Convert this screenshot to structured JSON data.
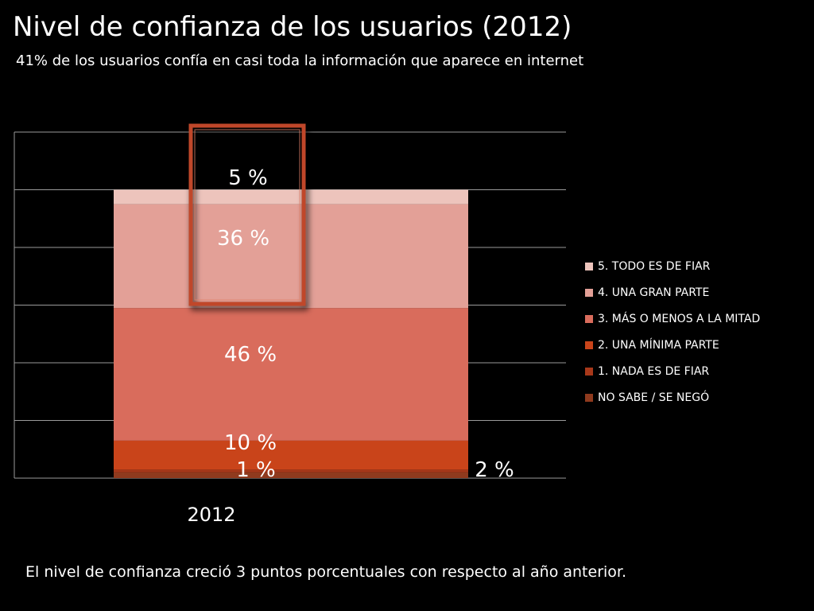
{
  "header": {
    "title": "Nivel de confianza de los usuarios (2012)",
    "subtitle": "41% de los usuarios confía en casi toda la información que aparece en internet"
  },
  "footer": {
    "note": "El nivel de confianza creció 3 puntos porcentuales con respecto al año anterior."
  },
  "chart_data": {
    "type": "bar",
    "stacked": true,
    "categories": [
      "2012"
    ],
    "ylim": [
      0,
      100
    ],
    "grid": true,
    "legend_position": "right",
    "highlight": "box around segments 5 and 4",
    "series": [
      {
        "name": "NO SABE / SE NEGÓ",
        "values": [
          2
        ],
        "label": "2 %",
        "color": "#8f3a1e"
      },
      {
        "name": "1. NADA ES DE FIAR",
        "values": [
          1
        ],
        "label": "1 %",
        "color": "#a8381a"
      },
      {
        "name": "2. UNA MÍNIMA PARTE",
        "values": [
          10
        ],
        "label": "10 %",
        "color": "#c9441a"
      },
      {
        "name": "3. MÁS  O MENOS A LA MITAD",
        "values": [
          46
        ],
        "label": "46 %",
        "color": "#d96c5c"
      },
      {
        "name": "4. UNA GRAN PARTE",
        "values": [
          36
        ],
        "label": "36 %",
        "color": "#e3a097"
      },
      {
        "name": "5. TODO ES DE FIAR",
        "values": [
          5
        ],
        "label": "5 %",
        "color": "#edc4bc"
      }
    ]
  }
}
